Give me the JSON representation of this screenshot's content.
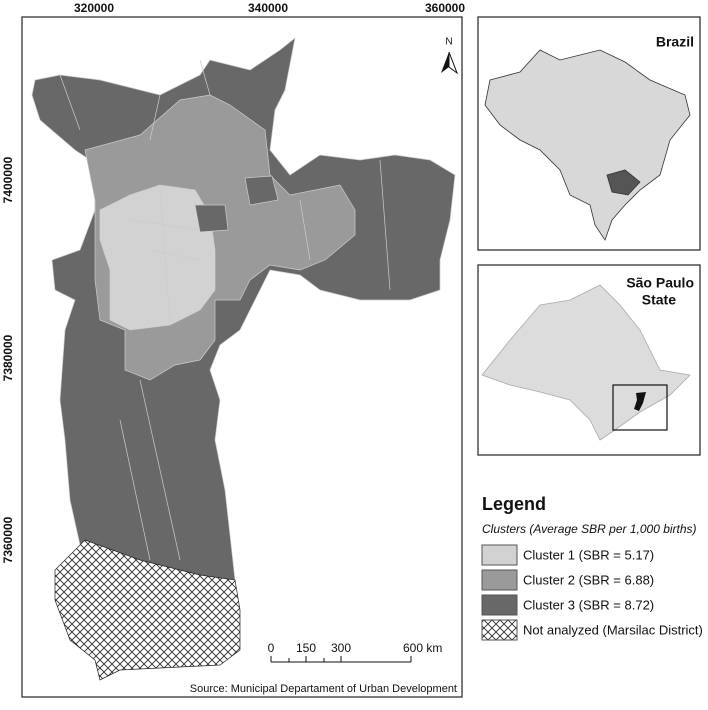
{
  "map": {
    "x_coordinates": [
      "320000",
      "340000",
      "360000"
    ],
    "y_coordinates": [
      "7400000",
      "7380000",
      "7360000"
    ],
    "north_arrow": "N",
    "scale_bar": [
      "0",
      "150",
      "300",
      "600 km"
    ],
    "source": "Source: Municipal Departament of Urban Development"
  },
  "insets": [
    {
      "title": "Brazil"
    },
    {
      "title_lines": [
        "São Paulo",
        "State"
      ]
    }
  ],
  "legend": {
    "title": "Legend",
    "subtitle": "Clusters (Average SBR per 1,000 births)",
    "items": [
      "Cluster 1 (SBR = 5.17)",
      "Cluster 2 (SBR = 6.88)",
      "Cluster 3 (SBR = 8.72)",
      "Not analyzed (Marsilac District)"
    ]
  }
}
